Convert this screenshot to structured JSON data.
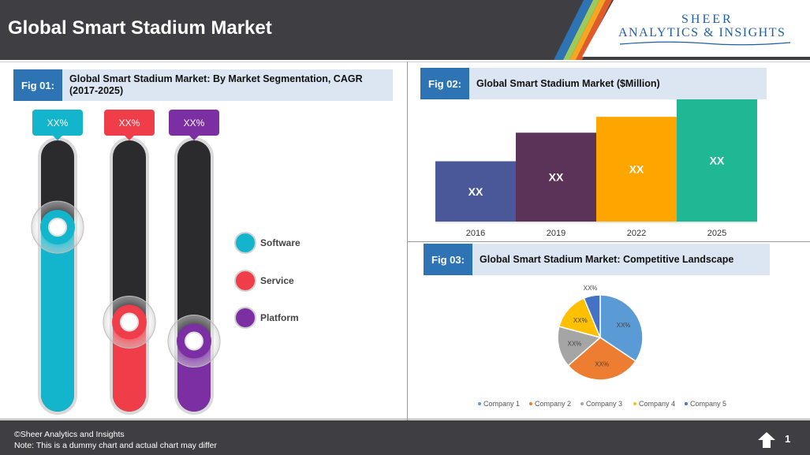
{
  "header": {
    "title": "Global Smart Stadium Market",
    "logo_line1": "SHEER",
    "logo_line2": "ANALYTICS & INSIGHTS"
  },
  "fig1": {
    "tag": "Fig 01:",
    "title": "Global Smart Stadium Market: By Market Segmentation, CAGR (2017-2025)"
  },
  "fig2": {
    "tag": "Fig 02:",
    "title": "Global Smart Stadium Market ($Million)"
  },
  "fig3": {
    "tag": "Fig 03:",
    "title": "Global Smart Stadium Market: Competitive Landscape"
  },
  "footer": {
    "copyright": "©Sheer Analytics and Insights",
    "note": "Note: This is a dummy chart and actual chart may differ",
    "page_number": "1"
  },
  "colors": {
    "header_bg": "#3f3f43",
    "fig_tag": "#2e74b5",
    "fig_bar": "#dce6f2",
    "software": "#12b5cb",
    "service": "#ef3e4a",
    "platform": "#7b2fa3"
  },
  "chart_data": [
    {
      "type": "bar",
      "subtype": "vertical-slider-gauges",
      "title": "Global Smart Stadium Market: By Market Segmentation, CAGR (2017-2025)",
      "series": [
        {
          "name": "Software",
          "label": "XX%",
          "level": 0.68,
          "color": "#12b5cb",
          "tag_color": "#12b5cb"
        },
        {
          "name": "Service",
          "label": "XX%",
          "level": 0.33,
          "color": "#ef3e4a",
          "tag_color": "#ef3e4a"
        },
        {
          "name": "Platform",
          "label": "XX%",
          "level": 0.26,
          "color": "#7b2fa3",
          "tag_color": "#7b2fa3"
        }
      ],
      "legend": [
        "Software",
        "Service",
        "Platform"
      ]
    },
    {
      "type": "bar",
      "title": "Global Smart Stadium Market ($Million)",
      "categories": [
        "2016",
        "2019",
        "2022",
        "2025"
      ],
      "values": [
        38,
        56,
        66,
        77
      ],
      "labels": [
        "XX",
        "XX",
        "XX",
        "XX"
      ],
      "colors": [
        "#4a5899",
        "#5b3258",
        "#ffa500",
        "#20b894"
      ],
      "ylim": [
        0,
        77
      ]
    },
    {
      "type": "pie",
      "title": "Global Smart Stadium Market: Competitive Landscape",
      "categories": [
        "Company 1",
        "Company 2",
        "Company 3",
        "Company 4",
        "Company 5"
      ],
      "values": [
        33,
        28,
        15,
        14,
        6
      ],
      "labels": [
        "XX%",
        "XX%",
        "XX%",
        "XX%",
        "XX%"
      ],
      "colors": [
        "#5b9bd5",
        "#ed7d31",
        "#a5a5a5",
        "#ffc000",
        "#4472c4"
      ],
      "legend_position": "bottom"
    }
  ]
}
